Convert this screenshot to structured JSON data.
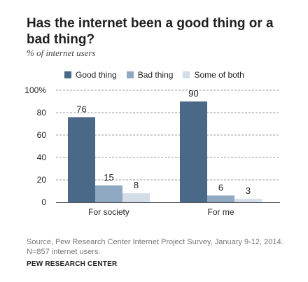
{
  "title": "Has the internet been a good thing or a bad thing?",
  "subtitle": "% of internet users",
  "source_lines": [
    "Source, Pew Research Center Internet Project Survey, January 9-12, 2014.",
    "N=857 internet users."
  ],
  "footer": "PEW RESEARCH CENTER",
  "chart_data": {
    "type": "bar",
    "categories": [
      "For society",
      "For me"
    ],
    "series": [
      {
        "name": "Good thing",
        "values": [
          76,
          90
        ],
        "color": "#4a6988"
      },
      {
        "name": "Bad thing",
        "values": [
          15,
          6
        ],
        "color": "#8fa9c2"
      },
      {
        "name": "Some of both",
        "values": [
          8,
          3
        ],
        "color": "#d2dde8"
      }
    ],
    "ylim": [
      0,
      100
    ],
    "yticks": [
      0,
      20,
      40,
      60,
      80,
      100
    ],
    "ytick_labels": [
      "0",
      "20",
      "40",
      "60",
      "80",
      "100%"
    ],
    "grid": true,
    "legend": "top"
  }
}
